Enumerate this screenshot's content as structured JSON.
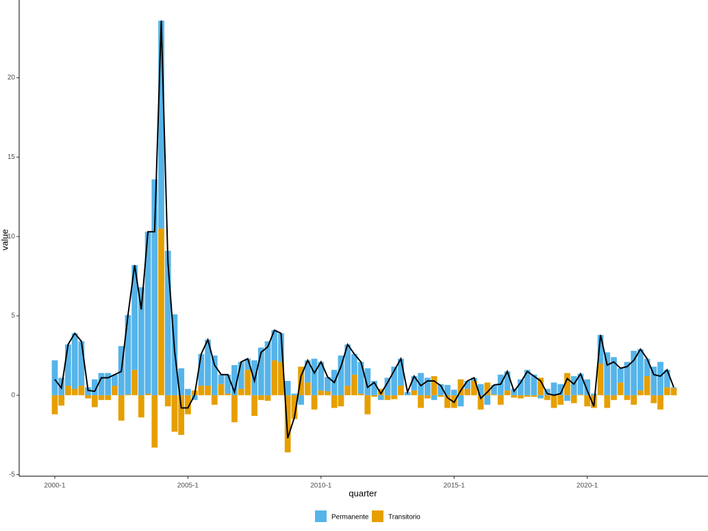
{
  "chart_data": {
    "type": "stacked-bar-line",
    "x_label": "quarter",
    "y_label": "value",
    "categories": [
      "2000-1",
      null,
      null,
      null,
      null,
      null,
      null,
      null,
      null,
      null,
      null,
      null,
      null,
      null,
      null,
      null,
      null,
      null,
      null,
      null,
      "2005-1",
      null,
      null,
      null,
      null,
      null,
      null,
      null,
      null,
      null,
      null,
      null,
      null,
      null,
      null,
      null,
      null,
      null,
      null,
      null,
      "2010-1",
      null,
      null,
      null,
      null,
      null,
      null,
      null,
      null,
      null,
      null,
      null,
      null,
      null,
      null,
      null,
      null,
      null,
      null,
      null,
      "2015-1",
      null,
      null,
      null,
      null,
      null,
      null,
      null,
      null,
      null,
      null,
      null,
      null,
      null,
      null,
      null,
      null,
      null,
      null,
      null,
      "2020-1",
      null,
      null,
      null,
      null,
      null,
      null,
      null,
      null,
      null,
      null,
      null,
      null,
      null
    ],
    "series": [
      {
        "name": "Permanente",
        "color": "#56B4E9",
        "values": [
          2.2,
          1.1,
          2.6,
          3.5,
          2.8,
          0.5,
          1.0,
          1.4,
          1.4,
          0.7,
          3.1,
          5.0,
          6.6,
          6.8,
          10.2,
          13.6,
          13.1,
          9.1,
          5.1,
          1.7,
          0.4,
          -0.3,
          2.0,
          2.9,
          2.5,
          0.6,
          1.2,
          1.9,
          1.7,
          0.7,
          2.2,
          3.0,
          3.4,
          1.9,
          1.8,
          0.9,
          0.1,
          -0.6,
          1.4,
          2.3,
          1.8,
          0.9,
          1.6,
          2.5,
          2.6,
          1.3,
          2.0,
          1.7,
          0.9,
          -0.3,
          1.1,
          1.8,
          1.7,
          0.2,
          0.9,
          1.4,
          1.1,
          -0.3,
          0.7,
          0.65,
          0.35,
          -0.7,
          0.5,
          0.2,
          0.7,
          -0.6,
          0.6,
          1.3,
          1.2,
          0.4,
          1.0,
          1.6,
          1.3,
          -0.2,
          0.4,
          0.8,
          0.7,
          -0.35,
          1.2,
          1.3,
          1.0,
          0.1,
          1.8,
          2.7,
          2.4,
          0.9,
          2.1,
          2.8,
          2.6,
          1.1,
          1.8,
          2.1,
          1.1,
          0.05
        ]
      },
      {
        "name": "Transitorio",
        "color": "#E69F00",
        "values": [
          -1.2,
          -0.65,
          0.6,
          0.4,
          0.6,
          -0.2,
          -0.75,
          -0.3,
          -0.3,
          0.6,
          -1.6,
          0.05,
          1.6,
          -1.4,
          0.1,
          -3.3,
          10.5,
          -0.7,
          -2.3,
          -2.5,
          -1.2,
          0.3,
          0.6,
          0.6,
          -0.6,
          0.7,
          0.1,
          -1.7,
          0.4,
          1.6,
          -1.3,
          -0.3,
          -0.35,
          2.2,
          2.1,
          -3.6,
          -1.5,
          1.8,
          0.8,
          -0.9,
          0.3,
          0.25,
          -0.8,
          -0.7,
          0.6,
          1.3,
          0.1,
          -1.2,
          -0.1,
          0.4,
          -0.3,
          -0.25,
          0.6,
          0.0,
          0.3,
          -0.8,
          -0.2,
          1.2,
          -0.1,
          -0.8,
          -0.8,
          1.0,
          0.4,
          0.9,
          -0.9,
          0.8,
          0.05,
          -0.6,
          0.3,
          -0.15,
          -0.2,
          -0.1,
          -0.1,
          1.1,
          -0.3,
          -0.8,
          -0.6,
          1.4,
          -0.5,
          0.05,
          -0.7,
          -0.8,
          2.0,
          -0.8,
          -0.3,
          0.8,
          -0.3,
          -0.6,
          0.3,
          1.2,
          -0.5,
          -0.9,
          0.5,
          0.45
        ]
      }
    ],
    "line_color": "#000000",
    "ylim": [
      -5.1,
      24.9
    ],
    "yticks": [
      -5,
      0,
      5,
      10,
      15,
      20
    ]
  }
}
